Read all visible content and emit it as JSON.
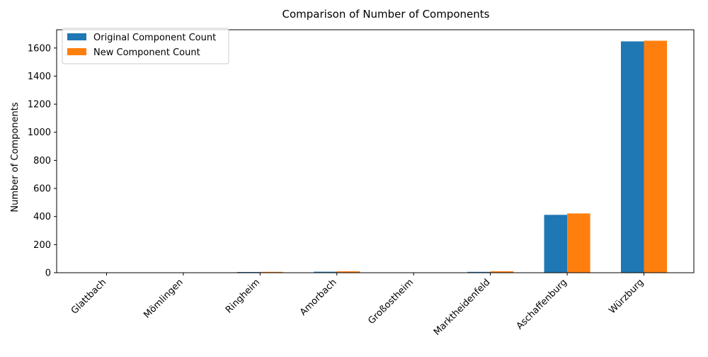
{
  "chart_data": {
    "type": "bar",
    "title": "Comparison of Number of Components",
    "xlabel": "",
    "ylabel": "Number of Components",
    "categories": [
      "Glattbach",
      "Mömlingen",
      "Ringheim",
      "Amorbach",
      "Großostheim",
      "Marktheidenfeld",
      "Aschaffenburg",
      "Würzburg"
    ],
    "series": [
      {
        "name": "Original Component Count",
        "color": "#1f77b4",
        "values": [
          1,
          1,
          5,
          7,
          1,
          6,
          412,
          1647
        ]
      },
      {
        "name": "New Component Count",
        "color": "#ff7f0e",
        "values": [
          1,
          1,
          6,
          10,
          1,
          10,
          422,
          1652
        ]
      }
    ],
    "ylim": [
      0,
      1730
    ],
    "yticks": [
      0,
      200,
      400,
      600,
      800,
      1000,
      1200,
      1400,
      1600
    ],
    "grid": false,
    "legend_position": "top-left"
  }
}
